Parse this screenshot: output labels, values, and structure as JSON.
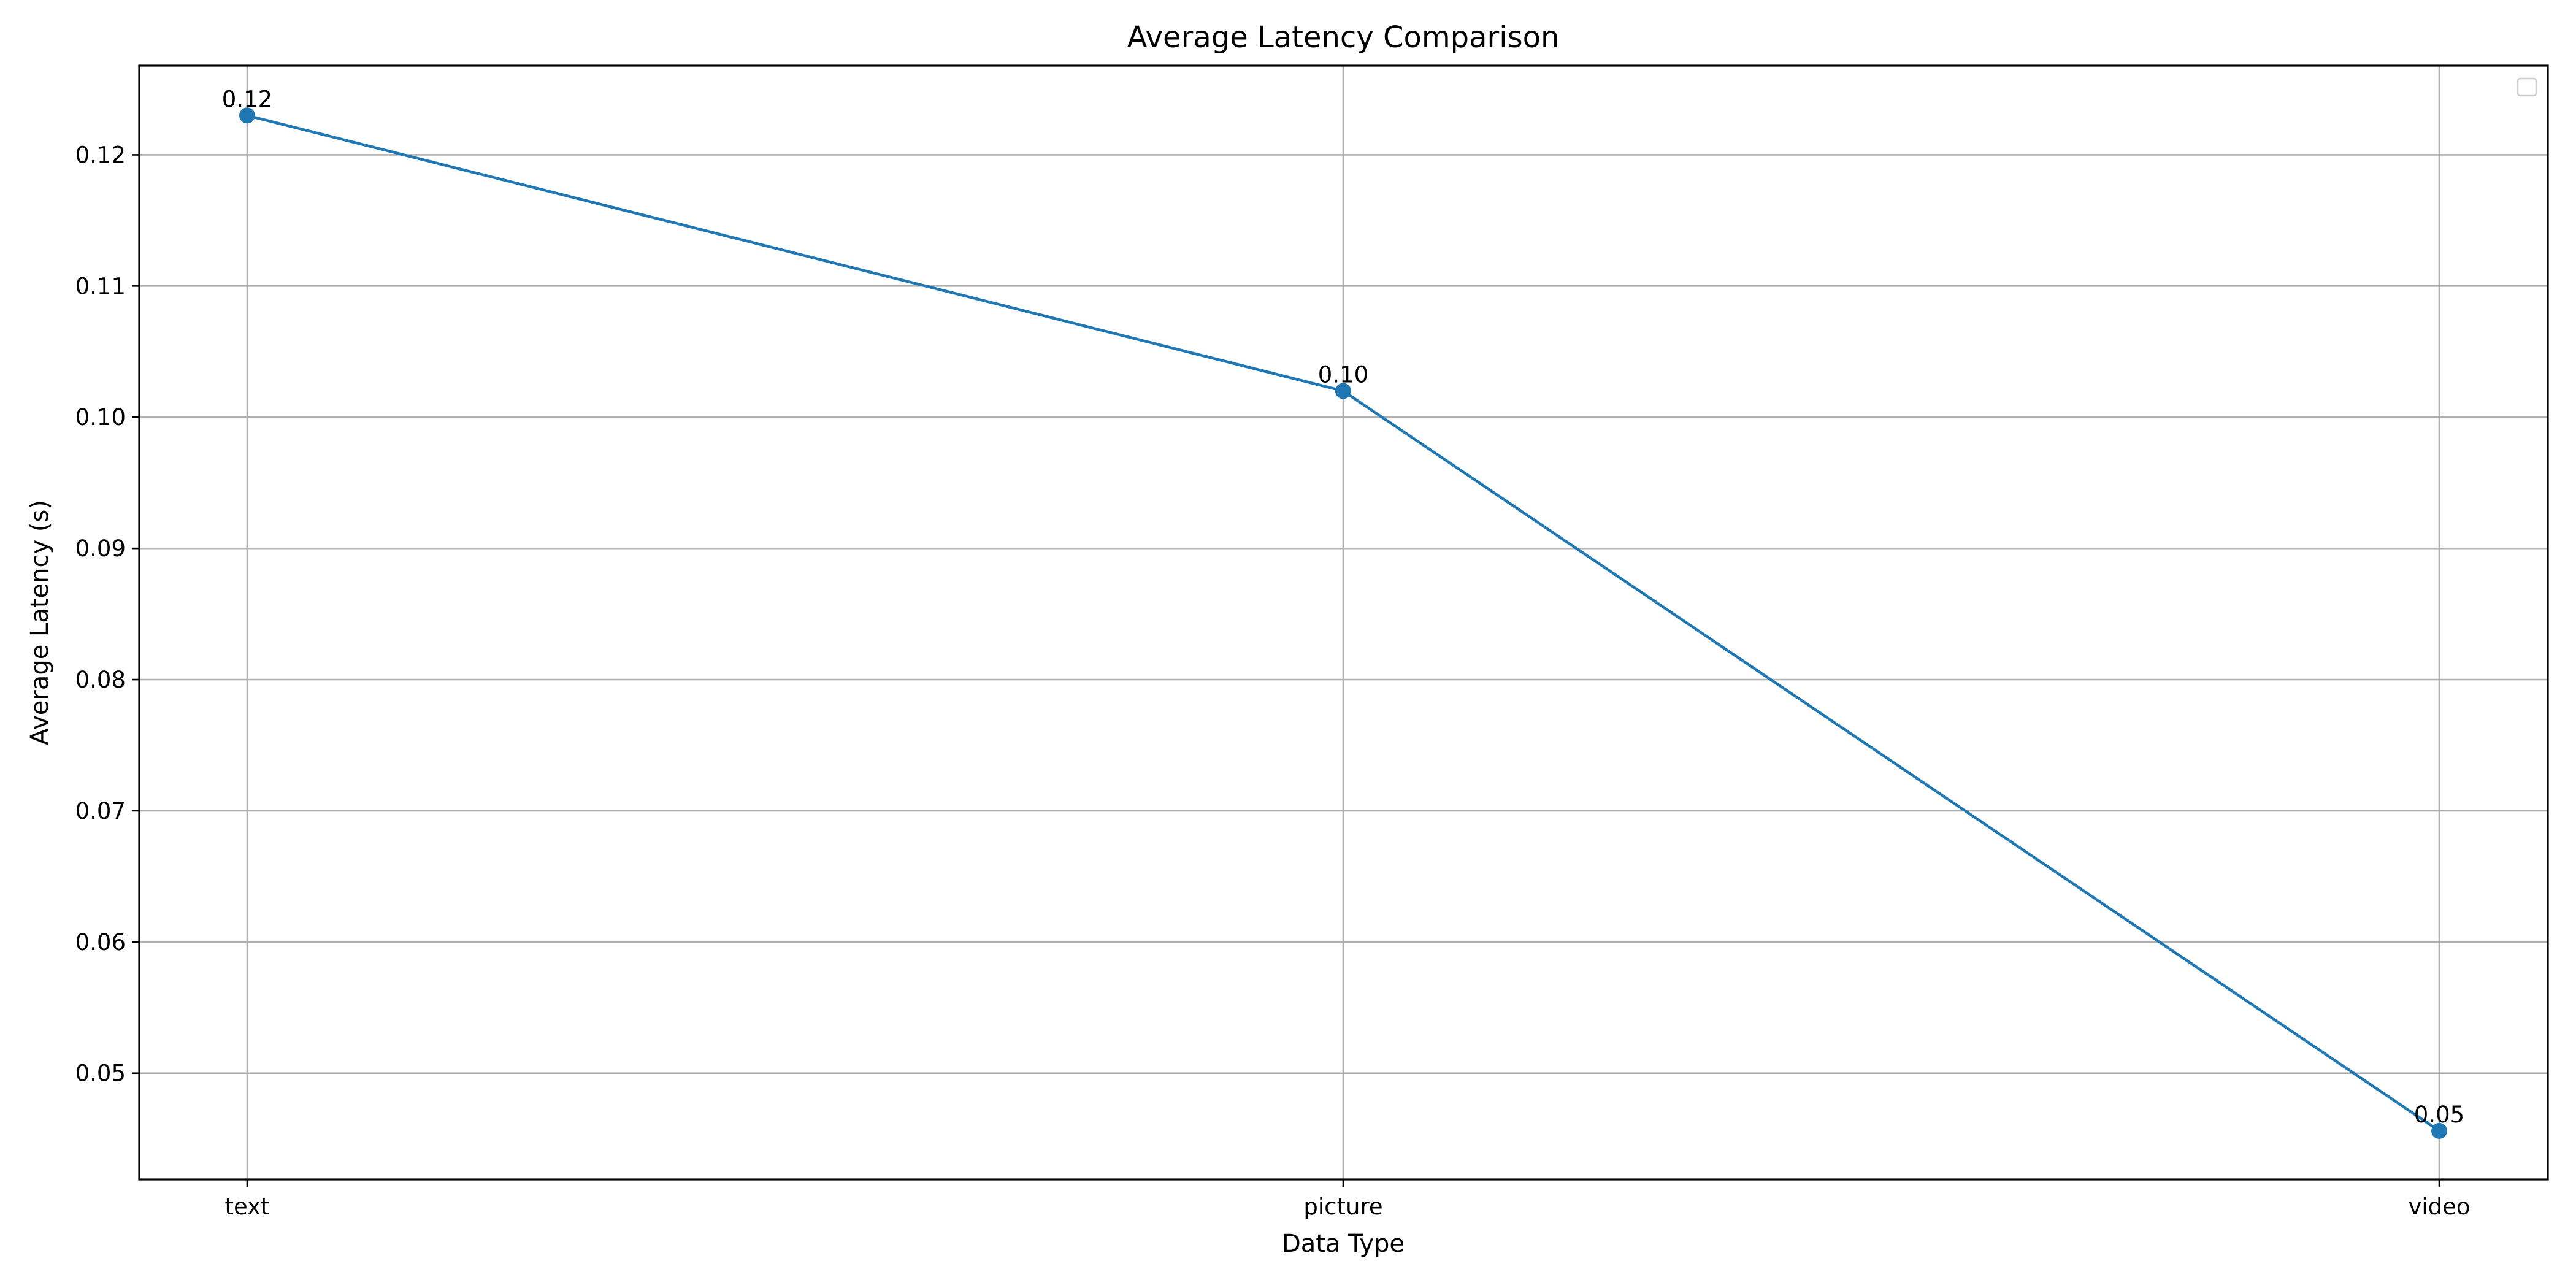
{
  "chart_data": {
    "type": "line",
    "title": "Average Latency Comparison",
    "xlabel": "Data Type",
    "ylabel": "Average Latency (s)",
    "categories": [
      "text",
      "picture",
      "video"
    ],
    "series": [
      {
        "values": [
          0.123,
          0.102,
          0.0456
        ],
        "value_labels": [
          "0.12",
          "0.10",
          "0.05"
        ],
        "color": "#1f77b4",
        "marker": "circle"
      }
    ],
    "ylim": [
      0.0419,
      0.1268
    ],
    "yticks": [
      0.05,
      0.06,
      0.07,
      0.08,
      0.09,
      0.1,
      0.11,
      0.12
    ],
    "ytick_labels": [
      "0.05",
      "0.06",
      "0.07",
      "0.08",
      "0.09",
      "0.10",
      "0.11",
      "0.12"
    ],
    "grid": true,
    "grid_color": "#b0b0b0",
    "legend": {
      "placement": "top-right",
      "entries": []
    }
  }
}
